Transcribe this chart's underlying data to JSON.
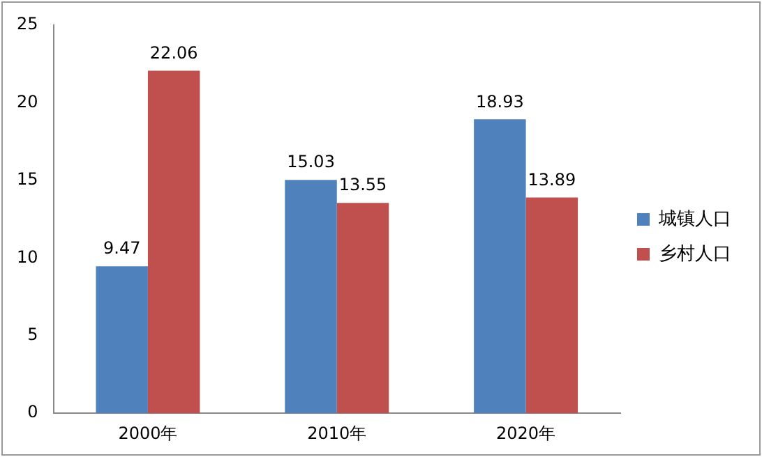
{
  "chart_data": {
    "type": "bar",
    "categories": [
      "2000年",
      "2010年",
      "2020年"
    ],
    "series": [
      {
        "name": "城镇人口",
        "color": "#4f81bd",
        "values": [
          9.47,
          15.03,
          18.93
        ]
      },
      {
        "name": "乡村人口",
        "color": "#c0504d",
        "values": [
          22.06,
          13.55,
          13.89
        ]
      }
    ],
    "ylim": [
      0,
      25
    ],
    "yticks": [
      0,
      5,
      10,
      15,
      20,
      25
    ],
    "grid": false,
    "legend": "right",
    "data_labels": true
  }
}
